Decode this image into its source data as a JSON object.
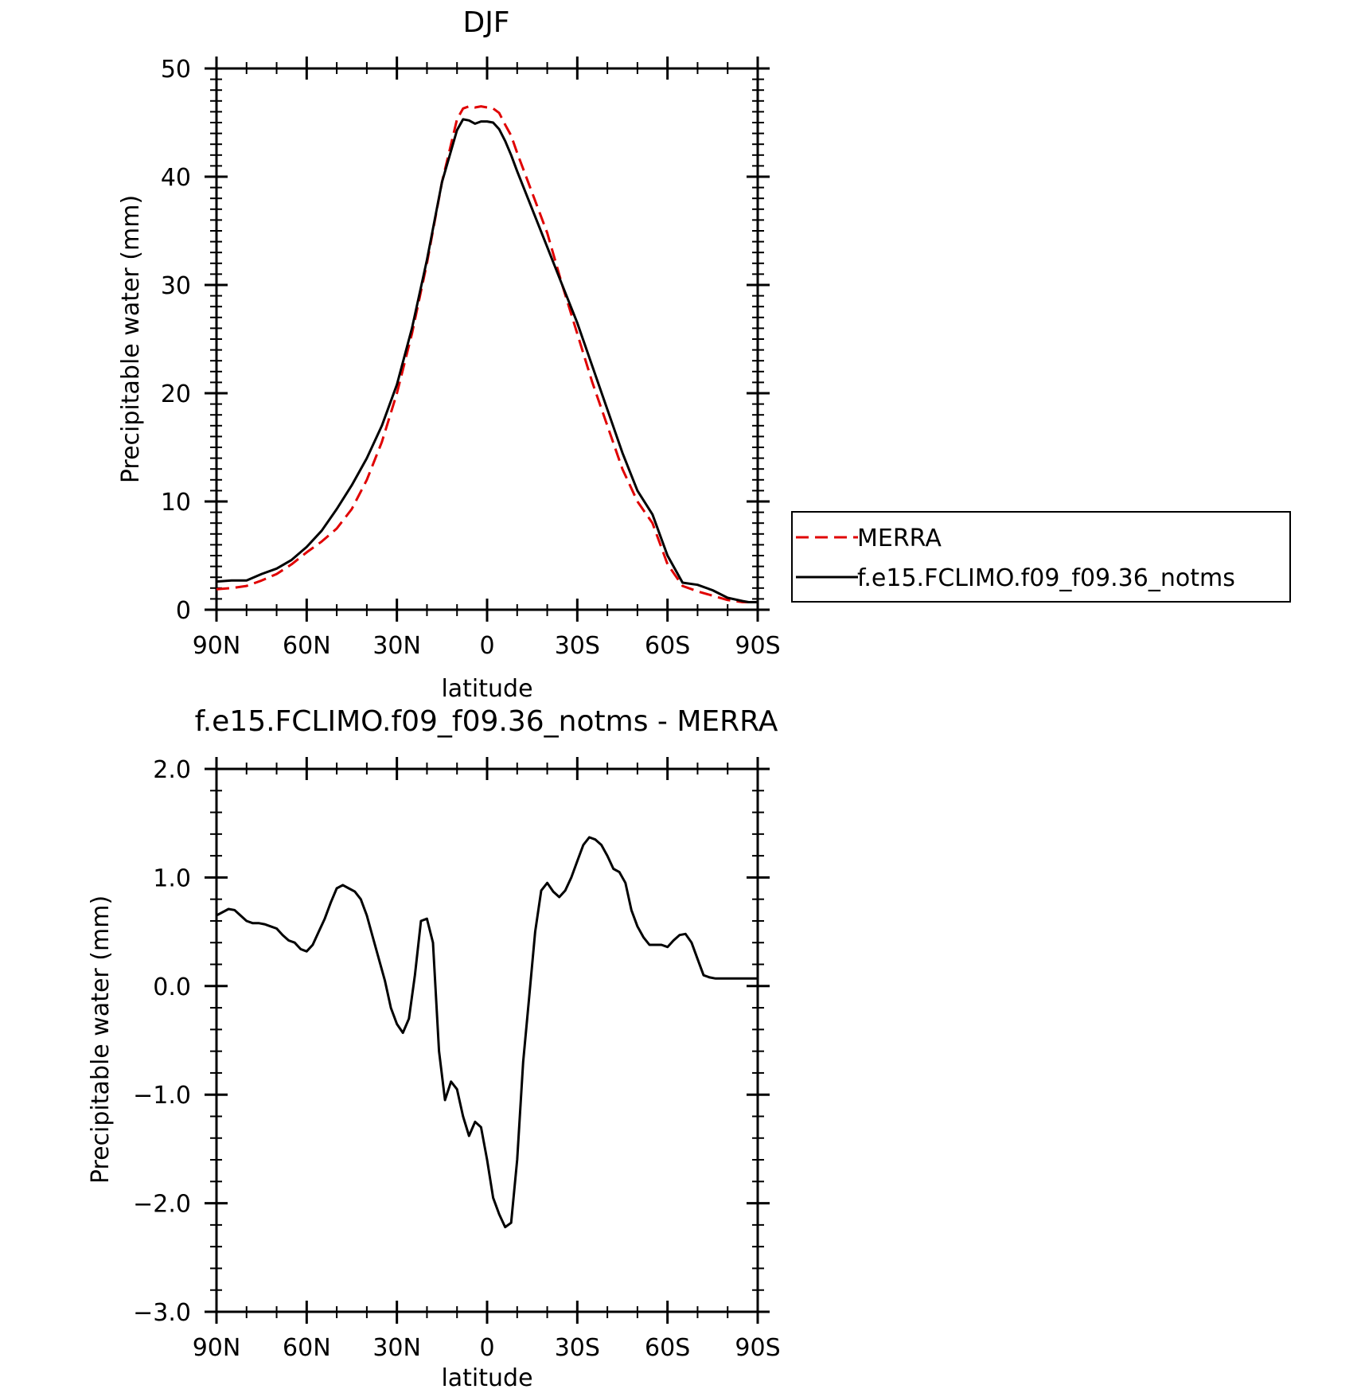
{
  "chart_data": [
    {
      "type": "line",
      "title": "DJF",
      "xlabel": "latitude",
      "ylabel": "Precipitable water (mm)",
      "xlim": [
        90,
        -90
      ],
      "ylim": [
        0,
        50
      ],
      "x_ticks": [
        90,
        60,
        30,
        0,
        -30,
        -60,
        -90
      ],
      "x_tick_labels": [
        "90N",
        "60N",
        "30N",
        "0",
        "30S",
        "60S",
        "90S"
      ],
      "y_ticks": [
        0,
        10,
        20,
        30,
        40,
        50
      ],
      "y_tick_labels": [
        "0",
        "10",
        "20",
        "30",
        "40",
        "50"
      ],
      "grid": false,
      "legend": "right",
      "series": [
        {
          "name": "MERRA",
          "color": "#e00000",
          "dash": "dashed",
          "x": [
            90,
            85,
            80,
            75,
            70,
            65,
            60,
            55,
            50,
            45,
            40,
            35,
            30,
            25,
            20,
            15,
            10,
            8,
            6,
            4,
            2,
            0,
            -2,
            -4,
            -6,
            -8,
            -10,
            -15,
            -20,
            -25,
            -30,
            -35,
            -40,
            -45,
            -50,
            -55,
            -60,
            -65,
            -70,
            -75,
            -80,
            -85,
            -87,
            -90
          ],
          "y": [
            1.9,
            2.0,
            2.2,
            2.7,
            3.3,
            4.2,
            5.3,
            6.3,
            7.5,
            9.3,
            12.0,
            15.5,
            20.0,
            25.5,
            32.0,
            39.5,
            45.3,
            46.3,
            46.5,
            46.4,
            46.5,
            46.4,
            46.3,
            45.9,
            44.8,
            43.8,
            42.2,
            38.5,
            34.8,
            30.0,
            25.5,
            21.0,
            17.0,
            13.0,
            10.0,
            8.0,
            4.2,
            2.2,
            1.7,
            1.3,
            0.9,
            0.7,
            0.7,
            0.7
          ]
        },
        {
          "name": "f.e15.FCLIMO.f09_f09.36_notms",
          "color": "#000000",
          "dash": "solid",
          "x": [
            90,
            85,
            80,
            75,
            70,
            65,
            60,
            55,
            50,
            45,
            40,
            35,
            30,
            25,
            20,
            15,
            10,
            8,
            6,
            4,
            2,
            0,
            -2,
            -4,
            -6,
            -8,
            -10,
            -15,
            -20,
            -25,
            -30,
            -35,
            -40,
            -45,
            -50,
            -55,
            -60,
            -65,
            -70,
            -75,
            -80,
            -85,
            -87,
            -90
          ],
          "y": [
            2.6,
            2.7,
            2.7,
            3.3,
            3.8,
            4.6,
            5.8,
            7.3,
            9.3,
            11.5,
            14.0,
            17.0,
            20.8,
            26.0,
            32.3,
            39.5,
            44.3,
            45.3,
            45.2,
            44.9,
            45.1,
            45.1,
            45.0,
            44.4,
            43.3,
            42.0,
            40.5,
            37.0,
            33.5,
            30.0,
            26.5,
            22.5,
            18.5,
            14.5,
            11.0,
            8.8,
            5.0,
            2.5,
            2.3,
            1.8,
            1.1,
            0.8,
            0.7,
            0.7
          ]
        }
      ]
    },
    {
      "type": "line",
      "title": "f.e15.FCLIMO.f09_f09.36_notms - MERRA",
      "xlabel": "latitude",
      "ylabel": "Precipitable water (mm)",
      "xlim": [
        90,
        -90
      ],
      "ylim": [
        -3.0,
        2.0
      ],
      "x_ticks": [
        90,
        60,
        30,
        0,
        -30,
        -60,
        -90
      ],
      "x_tick_labels": [
        "90N",
        "60N",
        "30N",
        "0",
        "30S",
        "60S",
        "90S"
      ],
      "y_ticks": [
        2.0,
        1.0,
        0.0,
        -1.0,
        -2.0,
        -3.0
      ],
      "y_tick_labels": [
        "2.0",
        "1.0",
        "0.0",
        "−1.0",
        "−2.0",
        "−3.0"
      ],
      "grid": false,
      "series": [
        {
          "color": "#000000",
          "dash": "solid",
          "x": [
            90,
            88,
            86,
            84,
            82,
            80,
            78,
            76,
            74,
            72,
            70,
            68,
            66,
            64,
            62,
            60,
            58,
            56,
            54,
            52,
            50,
            48,
            46,
            44,
            42,
            40,
            38,
            36,
            34,
            32,
            30,
            28,
            26,
            24,
            22,
            20,
            18,
            16,
            14,
            12,
            10,
            8,
            6,
            4,
            2,
            0,
            -2,
            -4,
            -6,
            -8,
            -10,
            -12,
            -14,
            -16,
            -18,
            -20,
            -22,
            -24,
            -26,
            -28,
            -30,
            -32,
            -34,
            -36,
            -38,
            -40,
            -42,
            -44,
            -46,
            -48,
            -50,
            -52,
            -54,
            -56,
            -58,
            -60,
            -62,
            -64,
            -66,
            -68,
            -70,
            -72,
            -74,
            -76,
            -78,
            -80,
            -82,
            -84,
            -86,
            -88,
            -90
          ],
          "y": [
            0.65,
            0.68,
            0.71,
            0.7,
            0.65,
            0.6,
            0.58,
            0.58,
            0.57,
            0.55,
            0.53,
            0.47,
            0.42,
            0.4,
            0.34,
            0.32,
            0.38,
            0.5,
            0.62,
            0.77,
            0.9,
            0.93,
            0.9,
            0.87,
            0.8,
            0.65,
            0.45,
            0.25,
            0.05,
            -0.2,
            -0.35,
            -0.43,
            -0.3,
            0.1,
            0.6,
            0.62,
            0.4,
            -0.6,
            -1.05,
            -0.88,
            -0.95,
            -1.2,
            -1.38,
            -1.25,
            -1.3,
            -1.6,
            -1.95,
            -2.1,
            -2.22,
            -2.18,
            -1.6,
            -0.7,
            -0.1,
            0.5,
            0.88,
            0.95,
            0.87,
            0.82,
            0.88,
            1.0,
            1.15,
            1.3,
            1.37,
            1.35,
            1.3,
            1.2,
            1.08,
            1.05,
            0.95,
            0.7,
            0.55,
            0.45,
            0.38,
            0.38,
            0.38,
            0.36,
            0.42,
            0.47,
            0.48,
            0.4,
            0.25,
            0.1,
            0.08,
            0.07,
            0.07,
            0.07,
            0.07,
            0.07,
            0.07,
            0.07,
            0.07
          ]
        }
      ]
    }
  ]
}
